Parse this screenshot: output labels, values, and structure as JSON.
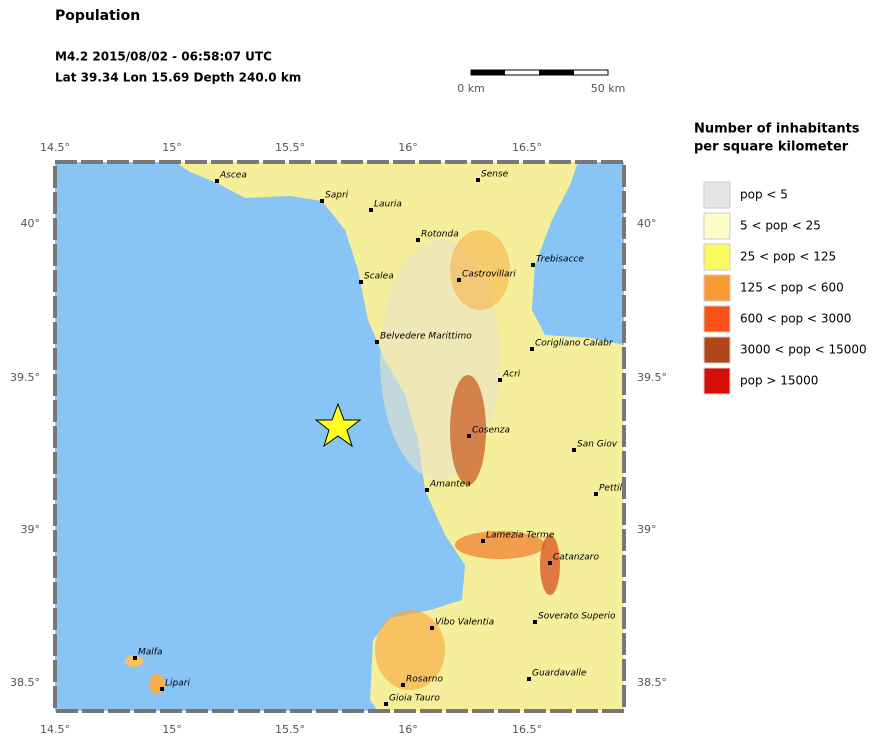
{
  "header": {
    "title": "Population",
    "event": "M4.2  2015/08/02 - 06:58:07 UTC",
    "location": "Lat 39.34    Lon  15.69      Depth 240.0 km"
  },
  "scale_bar": {
    "start": "0 km",
    "end": "50 km"
  },
  "axes": {
    "lon_ticks": [
      "14.5°",
      "15°",
      "15.5°",
      "16°",
      "16.5°"
    ],
    "lat_ticks": [
      "40°",
      "39.5°",
      "39°",
      "38.5°"
    ]
  },
  "legend": {
    "title": [
      "Number of inhabitants",
      "per square kilometer"
    ],
    "items": [
      {
        "label": "pop < 5",
        "color": "#e6e6e6"
      },
      {
        "label": "5 < pop < 25",
        "color": "#fdfdc8"
      },
      {
        "label": "25 < pop < 125",
        "color": "#fbf95e"
      },
      {
        "label": "125 < pop < 600",
        "color": "#f99a35"
      },
      {
        "label": "600 < pop < 3000",
        "color": "#fa5116"
      },
      {
        "label": "3000 < pop < 15000",
        "color": "#b0461a"
      },
      {
        "label": "pop > 15000",
        "color": "#d70e08"
      }
    ]
  },
  "cities": [
    "Ascea",
    "Sapri",
    "Lauria",
    "Sense",
    "Rotonda",
    "Scalea",
    "Castrovillari",
    "Trebisacce",
    "Belvedere Marittimo",
    "Corigliano Calabr",
    "Acri",
    "Cosenza",
    "San Giov",
    "Amantea",
    "Pettili",
    "Lamezia Terme",
    "Catanzaro",
    "Soverato Superio",
    "Vibo Valentia",
    "Guardavalle",
    "Rosarno",
    "Gioia Tauro",
    "Malfa",
    "Lipari"
  ]
}
